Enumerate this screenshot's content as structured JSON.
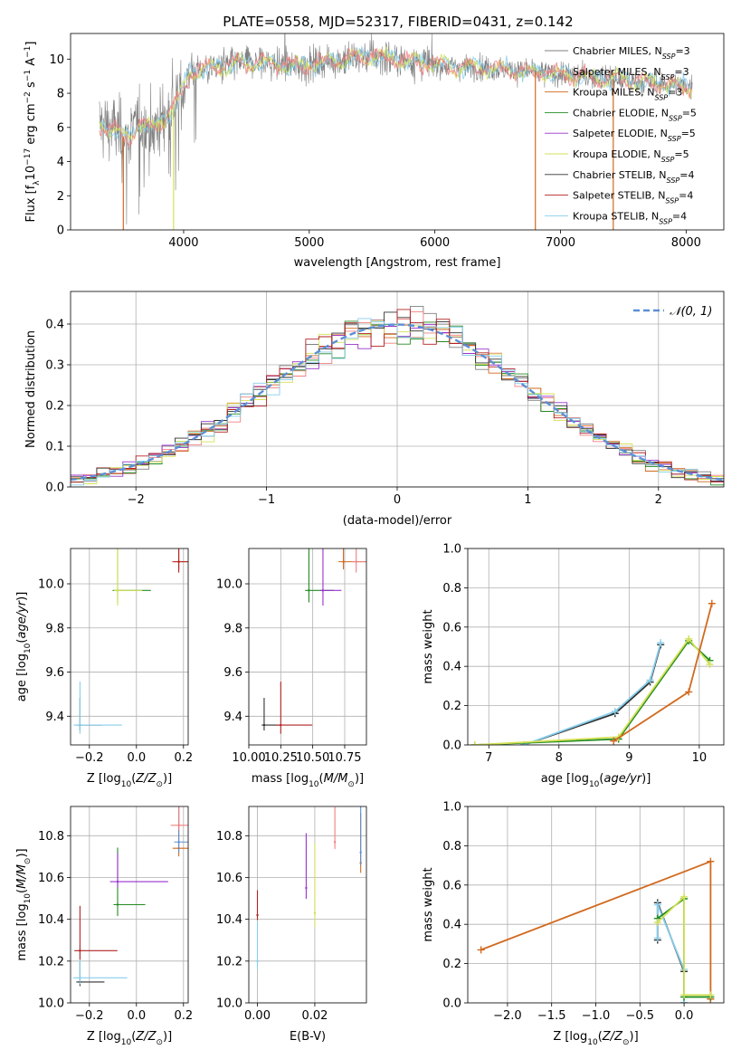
{
  "title": "PLATE=0558, MJD=52317, FIBERID=0431, z=0.142",
  "models": [
    {
      "name": "Chabrier MILES",
      "nssp": "3",
      "color": "#808080"
    },
    {
      "name": "Salpeter MILES",
      "nssp": "3",
      "color": "#f08080"
    },
    {
      "name": "Kroupa MILES",
      "nssp": "3",
      "color": "#d2691e"
    },
    {
      "name": "Chabrier ELODIE",
      "nssp": "5",
      "color": "#228b22"
    },
    {
      "name": "Salpeter ELODIE",
      "nssp": "5",
      "color": "#9932cc"
    },
    {
      "name": "Kroupa ELODIE",
      "nssp": "5",
      "color": "#d4e157"
    },
    {
      "name": "Chabrier STELIB",
      "nssp": "4",
      "color": "#303030"
    },
    {
      "name": "Salpeter STELIB",
      "nssp": "4",
      "color": "#b22222"
    },
    {
      "name": "Kroupa STELIB",
      "nssp": "4",
      "color": "#87ceeb"
    }
  ],
  "chart_data": [
    {
      "id": "spectrum",
      "type": "line",
      "xlabel": "wavelength [Angstrom, rest frame]",
      "ylabel": "Flux [f_λ 10^-17 erg cm^-2 s^-1 A^-1]",
      "xlim": [
        3100,
        8300
      ],
      "ylim": [
        0,
        11.5
      ],
      "xticks": [
        4000,
        5000,
        6000,
        7000,
        8000
      ],
      "yticks": [
        0,
        2,
        4,
        6,
        8,
        10
      ],
      "legend": "upper right",
      "series_note": "observed spectrum (grey, noisy) with model fits overlaid",
      "continuum": {
        "x": [
          3330,
          3450,
          3550,
          3650,
          3750,
          3850,
          3950,
          4050,
          4300,
          4600,
          4900,
          5200,
          5500,
          5800,
          6100,
          6400,
          6700,
          7000,
          7300,
          7600,
          7900,
          8050
        ],
        "y": [
          6.2,
          5.9,
          5.3,
          6.4,
          5.8,
          6.6,
          7.4,
          9.3,
          9.6,
          9.8,
          9.6,
          9.9,
          10.2,
          9.9,
          9.6,
          9.5,
          9.3,
          9.1,
          8.9,
          8.7,
          8.5,
          8.4
        ]
      }
    },
    {
      "id": "residuals",
      "type": "area",
      "xlabel": "(data-model)/error",
      "ylabel": "Normed distribution",
      "xlim": [
        -2.5,
        2.5
      ],
      "ylim": [
        0,
        0.48
      ],
      "xticks": [
        -2,
        -1,
        0,
        1,
        2
      ],
      "yticks": [
        0.0,
        0.1,
        0.2,
        0.3,
        0.4
      ],
      "grid": true,
      "legend": "upper right",
      "reference": {
        "name": "𝒩(0, 1)",
        "color": "#5b8fd6"
      }
    },
    {
      "id": "age_vs_Z",
      "type": "scatter",
      "xlabel": "Z [log10(Z/Z⊙)]",
      "ylabel": "age [log10(age/yr)]",
      "xlim": [
        -0.28,
        0.22
      ],
      "ylim": [
        9.27,
        10.16
      ],
      "xticks": [
        -0.2,
        0.0,
        0.2
      ],
      "yticks": [
        9.4,
        9.6,
        9.8,
        10.0
      ],
      "grid": true,
      "points": [
        {
          "x": -0.24,
          "y": 9.36,
          "color": "#303030"
        },
        {
          "x": -0.24,
          "y": 9.36,
          "color": "#87ceeb"
        },
        {
          "x": -0.08,
          "y": 9.97,
          "color": "#228b22"
        },
        {
          "x": -0.08,
          "y": 9.97,
          "color": "#d4e157"
        },
        {
          "x": 0.18,
          "y": 10.1,
          "color": "#d2691e"
        },
        {
          "x": 0.18,
          "y": 10.1,
          "color": "#b22222"
        }
      ]
    },
    {
      "id": "age_vs_mass",
      "type": "scatter",
      "xlabel": "mass [log10(M/M⊙)]",
      "ylabel": "",
      "xlim": [
        10.0,
        10.92
      ],
      "ylim": [
        9.27,
        10.16
      ],
      "xticks": [
        10.0,
        10.25,
        10.5,
        10.75
      ],
      "yticks": [
        9.4,
        9.6,
        9.8,
        10.0
      ],
      "grid": true,
      "points": [
        {
          "x": 10.12,
          "y": 9.36,
          "color": "#303030"
        },
        {
          "x": 10.25,
          "y": 9.36,
          "color": "#b22222"
        },
        {
          "x": 10.47,
          "y": 9.97,
          "color": "#228b22"
        },
        {
          "x": 10.58,
          "y": 9.97,
          "color": "#9932cc"
        },
        {
          "x": 10.74,
          "y": 10.1,
          "color": "#d2691e"
        },
        {
          "x": 10.84,
          "y": 10.1,
          "color": "#f08080"
        }
      ]
    },
    {
      "id": "mass_weight_vs_age",
      "type": "line",
      "xlabel": "age [log10(age/yr)]",
      "ylabel": "mass weight",
      "xlim": [
        6.7,
        10.35
      ],
      "ylim": [
        0,
        1.0
      ],
      "xticks": [
        7,
        8,
        9,
        10
      ],
      "yticks": [
        0.0,
        0.2,
        0.4,
        0.6,
        0.8,
        1.0
      ],
      "grid": true,
      "series": [
        {
          "color": "#303030",
          "x": [
            7.5,
            8.8,
            9.3,
            9.45
          ],
          "y": [
            0.0,
            0.16,
            0.32,
            0.51
          ]
        },
        {
          "color": "#87ceeb",
          "x": [
            7.5,
            8.8,
            9.3,
            9.45
          ],
          "y": [
            0.0,
            0.17,
            0.33,
            0.52
          ]
        },
        {
          "color": "#228b22",
          "x": [
            6.8,
            8.85,
            9.85,
            10.15
          ],
          "y": [
            0.0,
            0.03,
            0.53,
            0.43
          ]
        },
        {
          "color": "#d4e157",
          "x": [
            6.8,
            8.85,
            9.85,
            10.15
          ],
          "y": [
            0.0,
            0.04,
            0.54,
            0.41
          ]
        },
        {
          "color": "#d2691e",
          "x": [
            8.78,
            9.85,
            10.18
          ],
          "y": [
            0.02,
            0.27,
            0.72
          ]
        }
      ]
    },
    {
      "id": "mass_vs_Z",
      "type": "scatter",
      "xlabel": "Z [log10(Z/Z⊙)]",
      "ylabel": "mass [log10(M/M⊙)]",
      "xlim": [
        -0.28,
        0.22
      ],
      "ylim": [
        10.0,
        10.94
      ],
      "xticks": [
        -0.2,
        0.0,
        0.2
      ],
      "yticks": [
        10.0,
        10.2,
        10.4,
        10.6,
        10.8
      ],
      "grid": true,
      "points": [
        {
          "x": -0.24,
          "y": 10.1,
          "color": "#303030"
        },
        {
          "x": -0.24,
          "y": 10.12,
          "color": "#87ceeb"
        },
        {
          "x": -0.24,
          "y": 10.25,
          "color": "#b22222"
        },
        {
          "x": -0.08,
          "y": 10.47,
          "color": "#228b22"
        },
        {
          "x": -0.08,
          "y": 10.58,
          "color": "#9932cc"
        },
        {
          "x": 0.18,
          "y": 10.74,
          "color": "#d2691e"
        },
        {
          "x": 0.18,
          "y": 10.77,
          "color": "#5b8fd6"
        },
        {
          "x": 0.18,
          "y": 10.85,
          "color": "#f08080"
        }
      ]
    },
    {
      "id": "mass_vs_ebv",
      "type": "scatter",
      "xlabel": "E(B-V)",
      "ylabel": "",
      "xlim": [
        -0.003,
        0.038
      ],
      "ylim": [
        10.0,
        10.94
      ],
      "xticks": [
        0.0,
        0.02
      ],
      "yticks": [
        10.0,
        10.2,
        10.4,
        10.6,
        10.8
      ],
      "grid": true,
      "points": [
        {
          "x": 0.0,
          "y": 10.42,
          "color": "#b22222"
        },
        {
          "x": 0.0,
          "y": 10.2,
          "color": "#87ceeb"
        },
        {
          "x": 0.017,
          "y": 10.55,
          "color": "#9932cc"
        },
        {
          "x": 0.02,
          "y": 10.43,
          "color": "#d4e157"
        },
        {
          "x": 0.027,
          "y": 10.77,
          "color": "#f08080"
        },
        {
          "x": 0.036,
          "y": 10.67,
          "color": "#d2691e"
        },
        {
          "x": 0.036,
          "y": 10.72,
          "color": "#5b8fd6"
        }
      ]
    },
    {
      "id": "mass_weight_vs_Z",
      "type": "line",
      "xlabel": "Z [log10(Z/Z⊙)]",
      "ylabel": "mass weight",
      "xlim": [
        -2.45,
        0.45
      ],
      "ylim": [
        0,
        1.0
      ],
      "xticks": [
        -2.0,
        -1.5,
        -1.0,
        -0.5,
        0.0
      ],
      "yticks": [
        0.0,
        0.2,
        0.4,
        0.6,
        0.8,
        1.0
      ],
      "grid": true,
      "series": [
        {
          "color": "#d2691e",
          "x": [
            -2.3,
            0.3,
            0.3,
            0.3
          ],
          "y": [
            0.27,
            0.72,
            0.02,
            0.02
          ]
        },
        {
          "color": "#303030",
          "x": [
            -0.3,
            -0.3,
            0.0,
            0.0
          ],
          "y": [
            0.32,
            0.51,
            0.16,
            0.0
          ]
        },
        {
          "color": "#87ceeb",
          "x": [
            -0.3,
            -0.3,
            0.0,
            0.0
          ],
          "y": [
            0.33,
            0.5,
            0.17,
            0.0
          ]
        },
        {
          "color": "#228b22",
          "x": [
            -0.3,
            0.0,
            0.0,
            0.3
          ],
          "y": [
            0.43,
            0.53,
            0.03,
            0.03
          ]
        },
        {
          "color": "#d4e157",
          "x": [
            -0.3,
            0.0,
            0.0,
            0.3
          ],
          "y": [
            0.41,
            0.54,
            0.04,
            0.04
          ]
        }
      ]
    }
  ]
}
